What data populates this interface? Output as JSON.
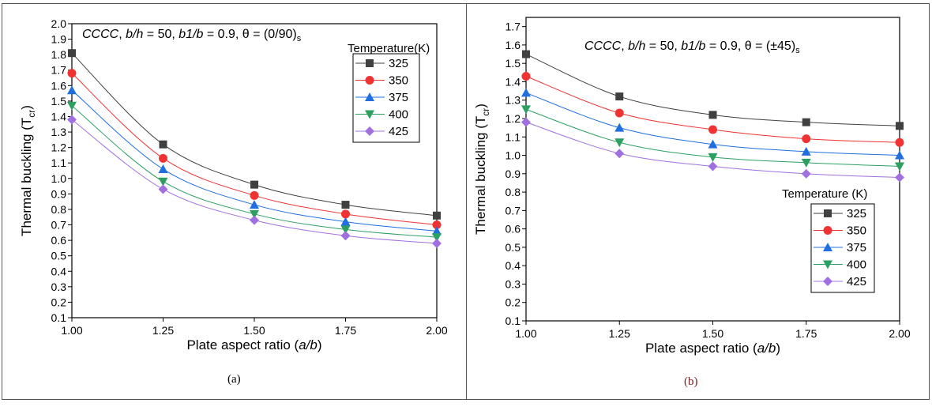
{
  "chart_data": [
    {
      "type": "line",
      "caption": "(a)",
      "annotation": {
        "pre": "CCCC",
        "mid1": ", ",
        "bh": "b/h",
        "mid2": " = 50, ",
        "b1b": "b1/b",
        "mid3": " = 0.9, θ = (0/90)",
        "sub": "s"
      },
      "xlabel": "Plate aspect ratio (a/b)",
      "ylabel": "Thermal buckling (T",
      "ylabel_sub": "cr",
      "xlim": [
        1.0,
        2.0
      ],
      "ylim": [
        0.1,
        2.0
      ],
      "xticks": [
        "1.00",
        "1.25",
        "1.50",
        "1.75",
        "2.00"
      ],
      "yticks": [
        "0.1",
        "0.2",
        "0.3",
        "0.4",
        "0.5",
        "0.6",
        "0.7",
        "0.8",
        "0.9",
        "1.0",
        "1.1",
        "1.2",
        "1.3",
        "1.4",
        "1.5",
        "1.6",
        "1.7",
        "1.8",
        "1.9",
        "2.0"
      ],
      "legend_title": "Temperature(K)",
      "legend_position": "top-right",
      "x": [
        1.0,
        1.25,
        1.5,
        1.75,
        2.0
      ],
      "series": [
        {
          "name": "325",
          "color": "#404040",
          "marker": "square",
          "values": [
            1.81,
            1.22,
            0.96,
            0.83,
            0.76
          ]
        },
        {
          "name": "350",
          "color": "#f03232",
          "marker": "circle",
          "values": [
            1.68,
            1.13,
            0.89,
            0.77,
            0.7
          ]
        },
        {
          "name": "375",
          "color": "#1f6fe0",
          "marker": "triangle-up",
          "values": [
            1.57,
            1.06,
            0.83,
            0.72,
            0.66
          ]
        },
        {
          "name": "400",
          "color": "#2ca060",
          "marker": "triangle-down",
          "values": [
            1.47,
            0.98,
            0.77,
            0.67,
            0.62
          ]
        },
        {
          "name": "425",
          "color": "#a070e0",
          "marker": "diamond",
          "values": [
            1.38,
            0.93,
            0.73,
            0.63,
            0.58
          ]
        }
      ]
    },
    {
      "type": "line",
      "caption": "(b)",
      "annotation": {
        "pre": "CCCC",
        "mid1": ", ",
        "bh": "b/h",
        "mid2": " = 50, ",
        "b1b": "b1/b",
        "mid3": " = 0.9, θ = (±45)",
        "sub": "s"
      },
      "xlabel": "Plate aspect ratio (a/b)",
      "ylabel": "Thermal buckling (T",
      "ylabel_sub": "cr",
      "xlim": [
        1.0,
        2.0
      ],
      "ylim": [
        0.1,
        1.75
      ],
      "xticks": [
        "1.00",
        "1.25",
        "1.50",
        "1.75",
        "2.00"
      ],
      "yticks": [
        "0.1",
        "0.2",
        "0.3",
        "0.4",
        "0.5",
        "0.6",
        "0.7",
        "0.8",
        "0.9",
        "1.0",
        "1.1",
        "1.2",
        "1.3",
        "1.4",
        "1.5",
        "1.6",
        "1.7"
      ],
      "legend_title": "Temperature (K)",
      "legend_position": "right",
      "x": [
        1.0,
        1.25,
        1.5,
        1.75,
        2.0
      ],
      "series": [
        {
          "name": "325",
          "color": "#404040",
          "marker": "square",
          "values": [
            1.55,
            1.32,
            1.22,
            1.18,
            1.16
          ]
        },
        {
          "name": "350",
          "color": "#f03232",
          "marker": "circle",
          "values": [
            1.43,
            1.23,
            1.14,
            1.09,
            1.07
          ]
        },
        {
          "name": "375",
          "color": "#1f6fe0",
          "marker": "triangle-up",
          "values": [
            1.34,
            1.15,
            1.06,
            1.02,
            1.0
          ]
        },
        {
          "name": "400",
          "color": "#2ca060",
          "marker": "triangle-down",
          "values": [
            1.25,
            1.07,
            0.99,
            0.96,
            0.94
          ]
        },
        {
          "name": "425",
          "color": "#a070e0",
          "marker": "diamond",
          "values": [
            1.18,
            1.01,
            0.94,
            0.9,
            0.88
          ]
        }
      ]
    }
  ]
}
